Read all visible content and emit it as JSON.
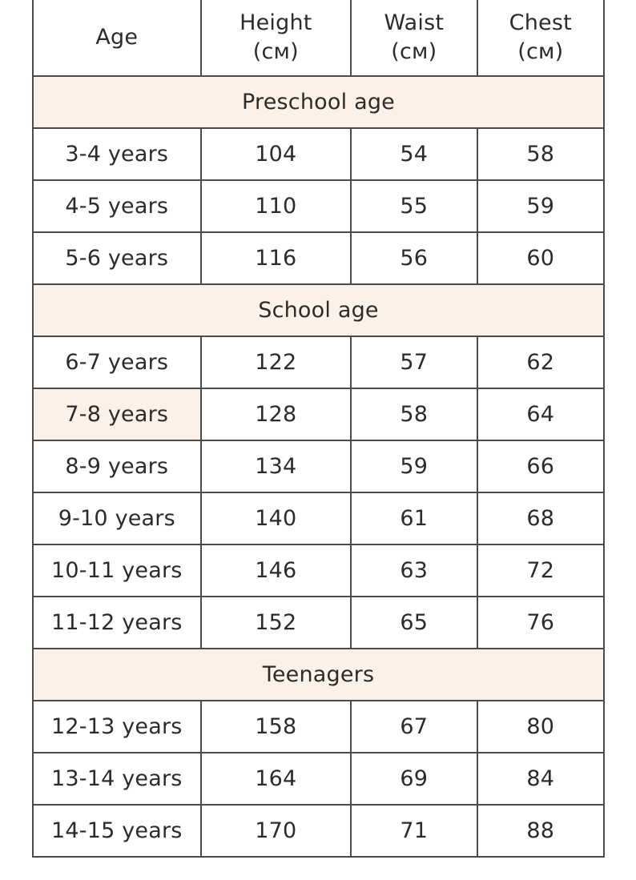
{
  "header": {
    "age": "Age",
    "height": "Height",
    "height_unit": "(см)",
    "waist": "Waist",
    "waist_unit": "(см)",
    "chest": "Chest",
    "chest_unit": "(см)"
  },
  "sections": [
    {
      "title": "Preschool age",
      "rows": [
        {
          "age": "3-4 years",
          "height": "104",
          "waist": "54",
          "chest": "58"
        },
        {
          "age": "4-5 years",
          "height": "110",
          "waist": "55",
          "chest": "59"
        },
        {
          "age": "5-6 years",
          "height": "116",
          "waist": "56",
          "chest": "60"
        }
      ]
    },
    {
      "title": "School age",
      "rows": [
        {
          "age": "6-7 years",
          "height": "122",
          "waist": "57",
          "chest": "62"
        },
        {
          "age": "7-8 years",
          "height": "128",
          "waist": "58",
          "chest": "64"
        },
        {
          "age": "8-9 years",
          "height": "134",
          "waist": "59",
          "chest": "66"
        },
        {
          "age": "9-10 years",
          "height": "140",
          "waist": "61",
          "chest": "68"
        },
        {
          "age": "10-11 years",
          "height": "146",
          "waist": "63",
          "chest": "72"
        },
        {
          "age": "11-12 years",
          "height": "152",
          "waist": "65",
          "chest": "76"
        }
      ]
    },
    {
      "title": "Teenagers",
      "rows": [
        {
          "age": "12-13 years",
          "height": "158",
          "waist": "67",
          "chest": "80"
        },
        {
          "age": "13-14 years",
          "height": "164",
          "waist": "69",
          "chest": "84"
        },
        {
          "age": "14-15 years",
          "height": "170",
          "waist": "71",
          "chest": "88"
        }
      ]
    }
  ],
  "colors": {
    "section_background": "#fcf1e8",
    "border": "#4a4a4a",
    "text": "#2b2b2b"
  }
}
